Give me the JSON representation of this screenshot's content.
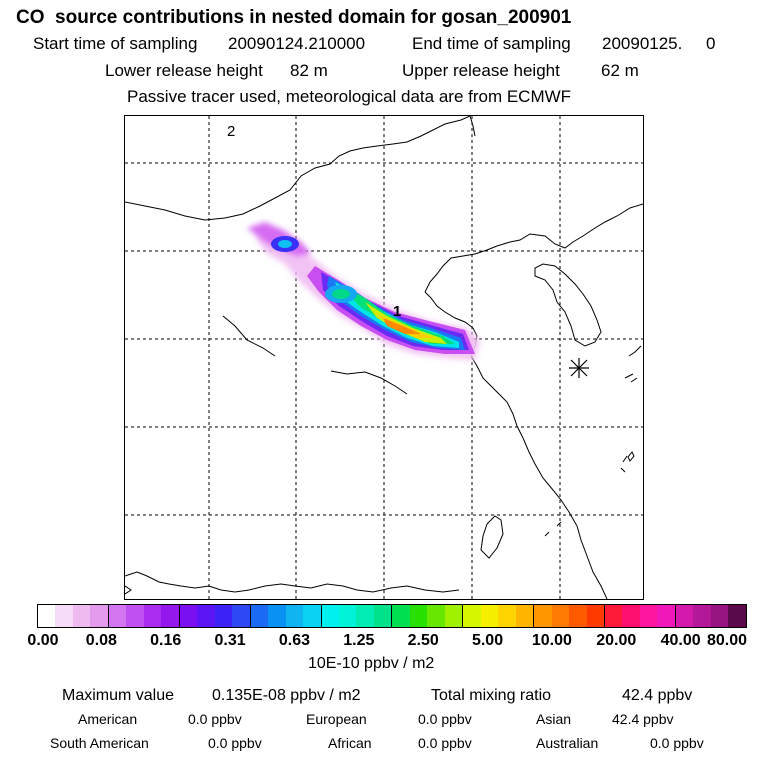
{
  "header": {
    "title": "CO  source contributions in nested domain for gosan_200901",
    "start_label": "Start time of sampling",
    "start_value": "20090124.210000",
    "end_label": "End time of sampling",
    "end_value": "20090125.     0",
    "lower_label": "Lower release height",
    "lower_value": "82 m",
    "upper_label": "Upper release height",
    "upper_value": "62 m",
    "tracer_note": "Passive tracer used, meteorological data are from ECMWF"
  },
  "map": {
    "marker_1": "1",
    "marker_2": "2"
  },
  "colorbar": {
    "colors": [
      "#ffffff",
      "#f6dcf6",
      "#eebaf0",
      "#e49bee",
      "#d375f0",
      "#c050f2",
      "#aa2cf0",
      "#9418ee",
      "#7a10f2",
      "#5a14f5",
      "#3c22f7",
      "#2e48f6",
      "#1a6af4",
      "#0a92f2",
      "#10b4f0",
      "#0ad2f0",
      "#00f0ef",
      "#00f3d6",
      "#00ecb4",
      "#00e28a",
      "#00e050",
      "#28e000",
      "#68e800",
      "#a0f000",
      "#d6f600",
      "#f6f000",
      "#ffd400",
      "#ffb400",
      "#ff9600",
      "#ff7a00",
      "#ff5a00",
      "#ff3a00",
      "#ff1a3a",
      "#ff1070",
      "#ff16a0",
      "#f018b8",
      "#d41aac",
      "#b41898",
      "#961480",
      "#5a0a4a"
    ],
    "tick_labels": [
      "0.00",
      "0.08",
      "0.16",
      "0.31",
      "0.63",
      "1.25",
      "2.50",
      "5.00",
      "10.00",
      "20.00",
      "40.00",
      "80.00"
    ],
    "units": "10E-10 ppbv / m2"
  },
  "summary": {
    "max_label": "Maximum value",
    "max_value": "0.135E-08 ppbv / m2",
    "total_label": "Total mixing ratio",
    "total_value": "42.4 ppbv",
    "american_label": "American",
    "american_value": "0.0 ppbv",
    "european_label": "European",
    "european_value": "0.0 ppbv",
    "asian_label": "Asian",
    "asian_value": "42.4 ppbv",
    "south_american_label": "South American",
    "south_american_value": "0.0 ppbv",
    "african_label": "African",
    "african_value": "0.0 ppbv",
    "australian_label": "Australian",
    "australian_value": "0.0 ppbv"
  }
}
